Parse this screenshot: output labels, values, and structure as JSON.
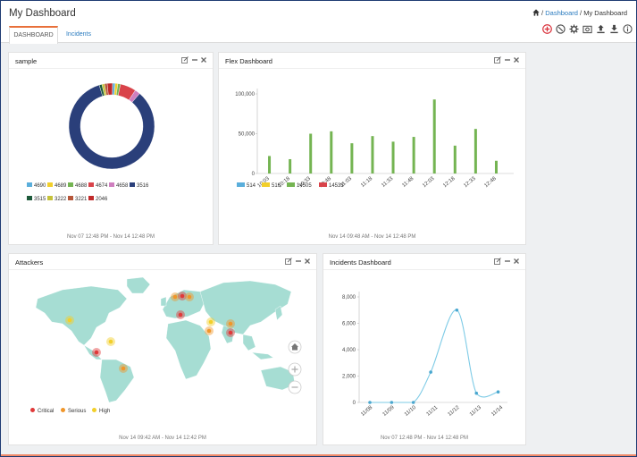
{
  "page": {
    "title": "My Dashboard",
    "breadcrumb": {
      "sep1": "/",
      "dashboard": "Dashboard",
      "sep2": "/",
      "current": "My Dashboard"
    }
  },
  "tabs": [
    {
      "label": "DASHBOARD",
      "active": true
    },
    {
      "label": "Incidents",
      "active": false
    }
  ],
  "toolbar": [
    "add-icon",
    "reset-icon",
    "settings-icon",
    "snapshot-icon",
    "export-icon",
    "import-icon",
    "info-icon"
  ],
  "panels": {
    "sample": {
      "title": "sample",
      "footer": "Nov 07 12:48 PM - Nov 14 12:48 PM",
      "legend": [
        {
          "label": "4690",
          "color": "#5aaedb"
        },
        {
          "label": "4689",
          "color": "#f2cf2a"
        },
        {
          "label": "4688",
          "color": "#74b452"
        },
        {
          "label": "4674",
          "color": "#d9434a"
        },
        {
          "label": "4658",
          "color": "#cf7fbf"
        },
        {
          "label": "3516",
          "color": "#2a3f7a"
        },
        {
          "label": "3515",
          "color": "#1d5a3a"
        },
        {
          "label": "3222",
          "color": "#c5c23a"
        },
        {
          "label": "3221",
          "color": "#b5563a"
        },
        {
          "label": "2046",
          "color": "#c02a2a"
        }
      ]
    },
    "flex": {
      "title": "Flex Dashboard",
      "footer": "Nov 14 09:48 AM - Nov 14 12:48 PM",
      "legend": [
        {
          "label": "514",
          "color": "#5aaedb"
        },
        {
          "label": "516",
          "color": "#f2cf2a"
        },
        {
          "label": "14505",
          "color": "#74b452"
        },
        {
          "label": "14533",
          "color": "#d9434a"
        }
      ]
    },
    "attackers": {
      "title": "Attackers",
      "footer": "Nov 14 09:42 AM - Nov 14 12:42 PM",
      "legend": [
        {
          "label": "Critical",
          "color": "#e03a3a"
        },
        {
          "label": "Serious",
          "color": "#f0962a"
        },
        {
          "label": "High",
          "color": "#f2cf2a"
        }
      ]
    },
    "incidents": {
      "title": "Incidents Dashboard",
      "footer": "Nov 07 12:48 PM - Nov 14 12:48 PM"
    }
  },
  "chart_data": [
    {
      "type": "pie",
      "title": "sample",
      "categories": [
        "4690",
        "4689",
        "4688",
        "4674",
        "4658",
        "3516",
        "3515",
        "3222",
        "3221",
        "2046"
      ],
      "values": [
        1,
        1,
        1,
        6,
        2,
        84,
        1,
        1,
        1,
        2
      ],
      "colors": [
        "#5aaedb",
        "#f2cf2a",
        "#74b452",
        "#d9434a",
        "#cf7fbf",
        "#2a3f7a",
        "#1d5a3a",
        "#c5c23a",
        "#b5563a",
        "#c02a2a"
      ],
      "legend": "bottom"
    },
    {
      "type": "bar",
      "title": "Flex Dashboard",
      "categories": [
        "10:03",
        "10:18",
        "10:33",
        "10:48",
        "11:03",
        "11:18",
        "11:33",
        "11:48",
        "12:03",
        "12:18",
        "12:33",
        "12:48"
      ],
      "series": [
        {
          "name": "514",
          "values": [
            0,
            0,
            0,
            0,
            0,
            0,
            0,
            0,
            0,
            0,
            0,
            0
          ],
          "color": "#5aaedb"
        },
        {
          "name": "516",
          "values": [
            0,
            0,
            0,
            0,
            0,
            0,
            0,
            0,
            0,
            0,
            0,
            0
          ],
          "color": "#f2cf2a"
        },
        {
          "name": "14505",
          "values": [
            22000,
            18000,
            50000,
            53000,
            38000,
            47000,
            40000,
            46000,
            93000,
            35000,
            56000,
            16000
          ],
          "color": "#74b452"
        },
        {
          "name": "14533",
          "values": [
            0,
            0,
            0,
            0,
            0,
            0,
            0,
            0,
            0,
            0,
            0,
            0
          ],
          "color": "#d9434a"
        }
      ],
      "yticks": [
        "0",
        "50,000",
        "100,000"
      ],
      "ylim": [
        0,
        100000
      ],
      "legend": "bottom-left"
    },
    {
      "type": "line",
      "title": "Incidents Dashboard",
      "categories": [
        "11/08",
        "11/09",
        "11/10",
        "11/11",
        "11/12",
        "11/13",
        "11/14"
      ],
      "x": [
        0,
        1,
        2,
        2.8,
        4,
        4.9,
        5.9
      ],
      "values": [
        0,
        0,
        0,
        2300,
        7000,
        700,
        800
      ],
      "yticks": [
        "0",
        "2,000",
        "4,000",
        "6,000",
        "8,000"
      ],
      "ylim": [
        0,
        8000
      ],
      "color": "#7ecbe6"
    }
  ]
}
